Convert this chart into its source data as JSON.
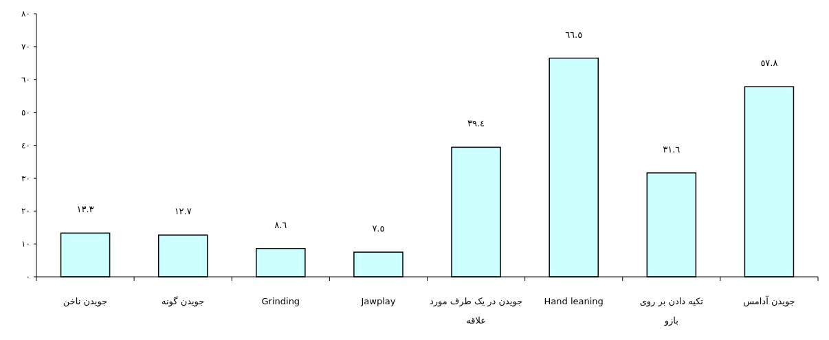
{
  "chart_data": {
    "type": "bar",
    "categories": [
      "جویدن ناخن",
      "جویدن گونه",
      "Grinding",
      "Jawplay",
      "جویدن در یک طرف مورد علاقه",
      "Hand leaning",
      "تکیه دادن بر روی بازو",
      "جویدن آدامس"
    ],
    "values": [
      13.3,
      12.7,
      8.6,
      7.5,
      39.4,
      66.5,
      31.6,
      57.8
    ],
    "value_labels": [
      "١٣.٣",
      "١٢.٧",
      "٨.٦",
      "٧.٥",
      "٣٩.٤",
      "٦٦.٥",
      "٣١.٦",
      "٥٧.٨"
    ],
    "color": "#ccffff",
    "ylim": [
      0,
      80
    ],
    "yticks": [
      {
        "value": 0,
        "label": "٠"
      },
      {
        "value": 10,
        "label": "١٠"
      },
      {
        "value": 20,
        "label": "٢٠"
      },
      {
        "value": 30,
        "label": "٣٠"
      },
      {
        "value": 40,
        "label": "٤٠"
      },
      {
        "value": 50,
        "label": "٥٠"
      },
      {
        "value": 60,
        "label": "٦٠"
      },
      {
        "value": 70,
        "label": "٧٠"
      },
      {
        "value": 80,
        "label": "٨٠"
      }
    ],
    "grid": false
  }
}
